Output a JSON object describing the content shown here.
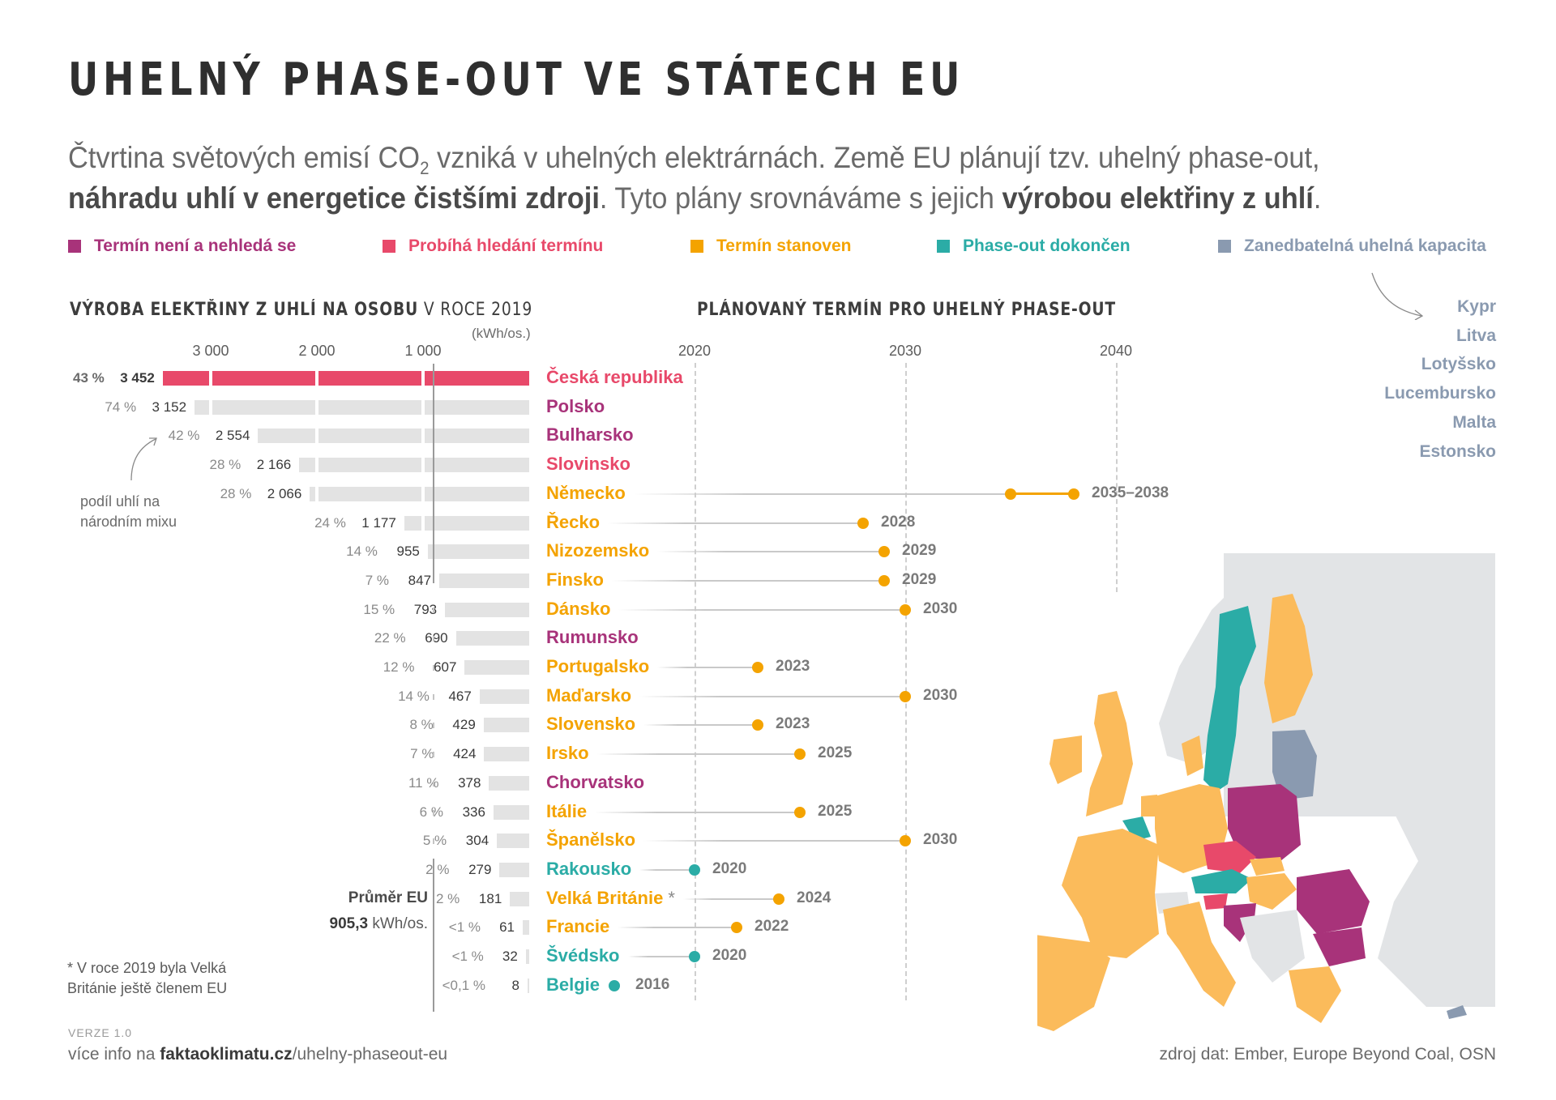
{
  "header": {
    "title": "UHELNÝ PHASE-OUT VE STÁTECH EU",
    "subtitle": {
      "line1_a": "Čtvrtina světových emisí CO",
      "line1_sub": "2",
      "line1_b": " vzniká v uhelných elektrárnách. Země EU plánují tzv. uhelný phase-out,",
      "line2_bold1": "náhradu uhlí v energetice čistšími zdroji",
      "line2_mid": ". Tyto plány srovnáváme s jejich ",
      "line2_bold2": "výrobou elektřiny z uhlí",
      "line2_end": "."
    }
  },
  "colors": {
    "no_date": "#a8337a",
    "searching": "#e8496a",
    "date_set": "#f4a300",
    "completed": "#2baca6",
    "negligible": "#8a9ab0",
    "bar_gray": "#e3e3e3",
    "map_other": "#e2e4e6",
    "map_orange": "#fbbb5b"
  },
  "legend": [
    {
      "key": "no_date",
      "label": "Termín není a nehledá se"
    },
    {
      "key": "searching",
      "label": "Probíhá hledání termínu"
    },
    {
      "key": "date_set",
      "label": "Termín stanoven"
    },
    {
      "key": "completed",
      "label": "Phase-out dokončen"
    },
    {
      "key": "negligible",
      "label": "Zanedbatelná uhelná kapacita"
    }
  ],
  "negligible_countries": [
    "Kypr",
    "Litva",
    "Lotyšsko",
    "Lucembursko",
    "Malta",
    "Estonsko"
  ],
  "left_chart": {
    "title_bold": "VÝROBA ELEKTŘINY Z UHLÍ NA OSOBU",
    "title_thin": " V ROCE 2019",
    "unit": "(kWh/os.)",
    "ticks": [
      {
        "value": 3000,
        "label": "3 000"
      },
      {
        "value": 2000,
        "label": "2 000"
      },
      {
        "value": 1000,
        "label": "1 000"
      }
    ],
    "annotation": "podíl uhlí na národním mixu",
    "eu_avg_label": "Průměr EU",
    "eu_avg_value": "905,3",
    "eu_avg_unit": " kWh/os.",
    "footnote": "* V roce 2019 byla Velká Británie ještě členem EU"
  },
  "right_chart": {
    "title": "PLÁNOVANÝ TERMÍN PRO UHELNÝ PHASE-OUT",
    "ticks": [
      {
        "value": 2020,
        "label": "2020"
      },
      {
        "value": 2030,
        "label": "2030"
      },
      {
        "value": 2040,
        "label": "2040"
      }
    ]
  },
  "chart_data": [
    {
      "type": "bar",
      "title": "VÝROBA ELEKTŘINY Z UHLÍ NA OSOBU V ROCE 2019",
      "xlabel": "(kWh/os.)",
      "xlim": [
        0,
        3452
      ],
      "orientation": "horizontal, growing leftward",
      "reference_line": {
        "label": "Průměr EU",
        "value": 905.3
      },
      "categories": [
        "Česká republika",
        "Polsko",
        "Bulharsko",
        "Slovinsko",
        "Německo",
        "Řecko",
        "Nizozemsko",
        "Finsko",
        "Dánsko",
        "Rumunsko",
        "Portugalsko",
        "Maďarsko",
        "Slovensko",
        "Irsko",
        "Chorvatsko",
        "Itálie",
        "Španělsko",
        "Rakousko",
        "Velká Británie *",
        "Francie",
        "Švédsko",
        "Belgie"
      ],
      "values": [
        3452,
        3152,
        2554,
        2166,
        2066,
        1177,
        955,
        847,
        793,
        690,
        607,
        467,
        429,
        424,
        378,
        336,
        304,
        279,
        181,
        61,
        32,
        8
      ],
      "value_labels": [
        "3 452",
        "3 152",
        "2 554",
        "2 166",
        "2 066",
        "1 177",
        "955",
        "847",
        "793",
        "690",
        "607",
        "467",
        "429",
        "424",
        "378",
        "336",
        "304",
        "279",
        "181",
        "61",
        "32",
        "8"
      ],
      "coal_share_labels": [
        "43 %",
        "74 %",
        "42 %",
        "28 %",
        "28 %",
        "24 %",
        "14 %",
        "7 %",
        "15 %",
        "22 %",
        "12 %",
        "14 %",
        "8 %",
        "7 %",
        "11 %",
        "6 %",
        "5 %",
        "2 %",
        "2 %",
        "<1 %",
        "<1 %",
        "<0,1 %"
      ],
      "highlight": "Česká republika"
    },
    {
      "type": "scatter",
      "title": "PLÁNOVANÝ TERMÍN PRO UHELNÝ PHASE-OUT",
      "xlim": [
        2020,
        2040
      ],
      "grid": true,
      "rows": [
        {
          "country": "Česká republika",
          "status": "searching",
          "start": null,
          "end": null,
          "label": ""
        },
        {
          "country": "Polsko",
          "status": "no_date",
          "start": null,
          "end": null,
          "label": ""
        },
        {
          "country": "Bulharsko",
          "status": "no_date",
          "start": null,
          "end": null,
          "label": ""
        },
        {
          "country": "Slovinsko",
          "status": "searching",
          "start": null,
          "end": null,
          "label": ""
        },
        {
          "country": "Německo",
          "status": "date_set",
          "start": 2035,
          "end": 2038,
          "label": "2035–2038"
        },
        {
          "country": "Řecko",
          "status": "date_set",
          "start": 2028,
          "end": 2028,
          "label": "2028"
        },
        {
          "country": "Nizozemsko",
          "status": "date_set",
          "start": 2029,
          "end": 2029,
          "label": "2029"
        },
        {
          "country": "Finsko",
          "status": "date_set",
          "start": 2029,
          "end": 2029,
          "label": "2029"
        },
        {
          "country": "Dánsko",
          "status": "date_set",
          "start": 2030,
          "end": 2030,
          "label": "2030"
        },
        {
          "country": "Rumunsko",
          "status": "no_date",
          "start": null,
          "end": null,
          "label": ""
        },
        {
          "country": "Portugalsko",
          "status": "date_set",
          "start": 2023,
          "end": 2023,
          "label": "2023"
        },
        {
          "country": "Maďarsko",
          "status": "date_set",
          "start": 2030,
          "end": 2030,
          "label": "2030"
        },
        {
          "country": "Slovensko",
          "status": "date_set",
          "start": 2023,
          "end": 2023,
          "label": "2023"
        },
        {
          "country": "Irsko",
          "status": "date_set",
          "start": 2025,
          "end": 2025,
          "label": "2025"
        },
        {
          "country": "Chorvatsko",
          "status": "no_date",
          "start": null,
          "end": null,
          "label": ""
        },
        {
          "country": "Itálie",
          "status": "date_set",
          "start": 2025,
          "end": 2025,
          "label": "2025"
        },
        {
          "country": "Španělsko",
          "status": "date_set",
          "start": 2030,
          "end": 2030,
          "label": "2030"
        },
        {
          "country": "Rakousko",
          "status": "completed",
          "start": 2020,
          "end": 2020,
          "label": "2020"
        },
        {
          "country": "Velká Británie *",
          "status": "date_set",
          "start": 2024,
          "end": 2024,
          "label": "2024"
        },
        {
          "country": "Francie",
          "status": "date_set",
          "start": 2022,
          "end": 2022,
          "label": "2022"
        },
        {
          "country": "Švédsko",
          "status": "completed",
          "start": 2020,
          "end": 2020,
          "label": "2020"
        },
        {
          "country": "Belgie",
          "status": "completed",
          "start": 2016,
          "end": 2016,
          "label": "2016"
        }
      ]
    }
  ],
  "footer": {
    "version": "VERZE 1.0",
    "more_prefix": "více info na ",
    "more_domain": "faktaoklimatu.cz",
    "more_path": "/uhelny-phaseout-eu",
    "source": "zdroj dat: Ember, Europe Beyond Coal, OSN"
  }
}
